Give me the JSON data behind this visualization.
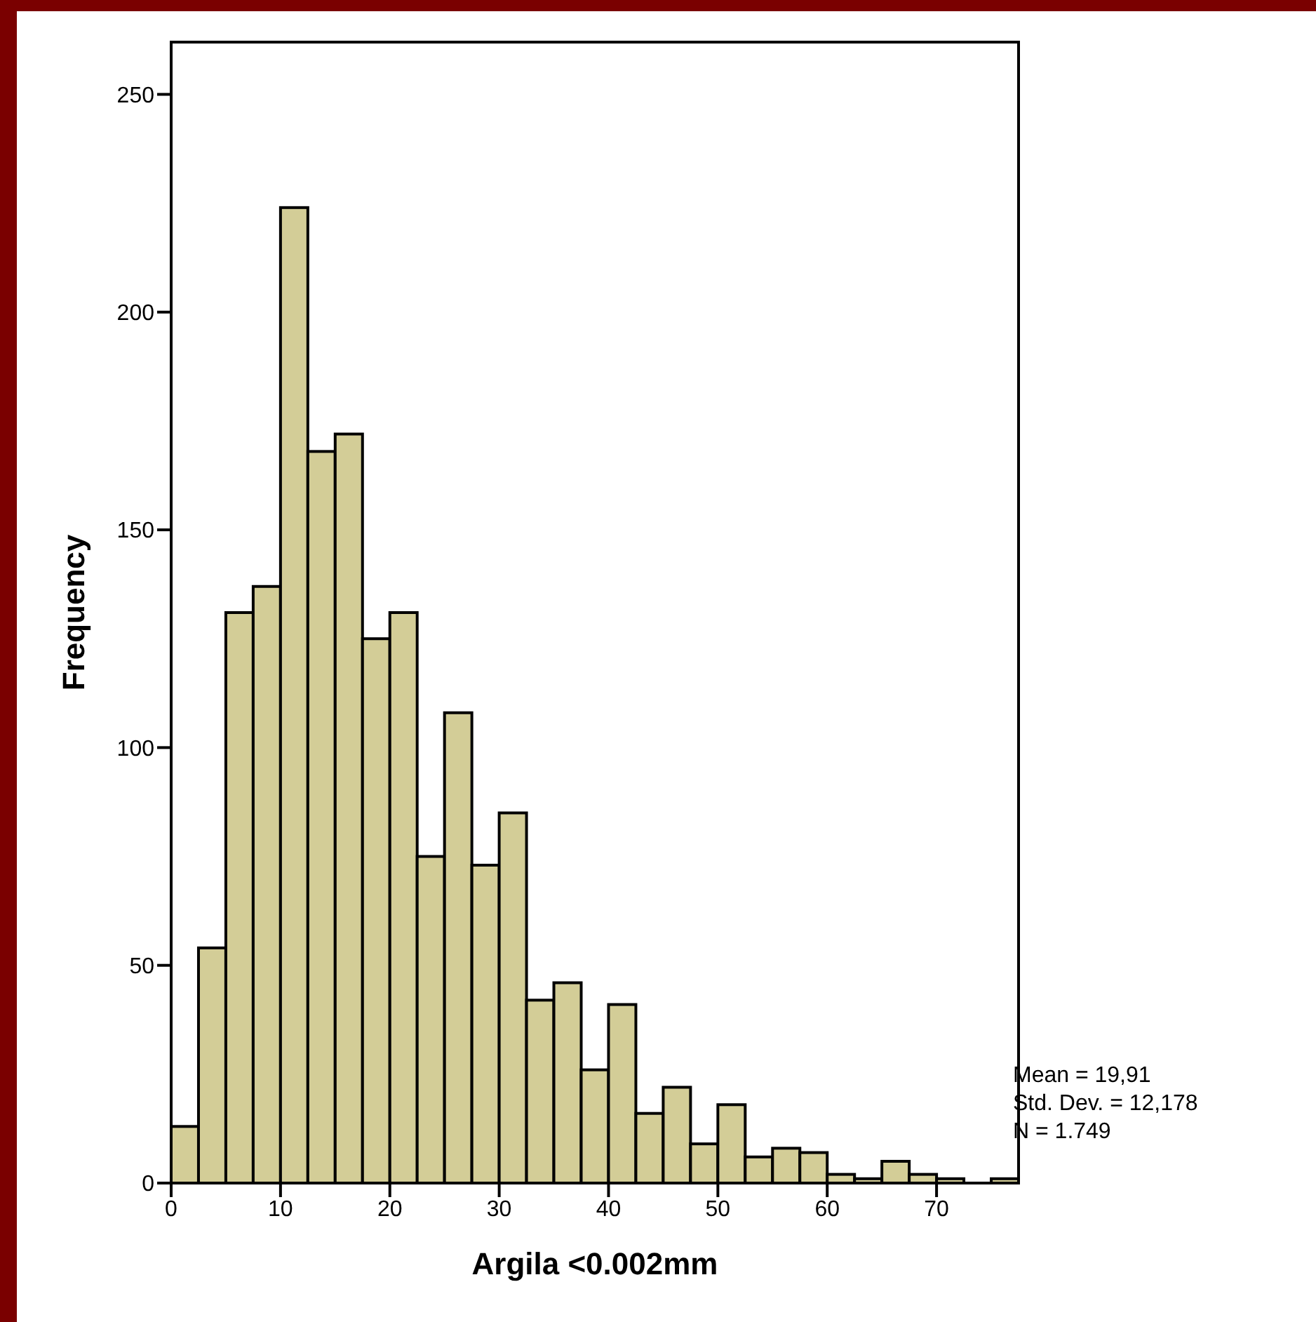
{
  "chart_data": {
    "type": "histogram",
    "xlabel": "Argila <0.002mm",
    "ylabel": "Frequency",
    "bins": [
      0,
      2.5,
      5,
      7.5,
      10,
      12.5,
      15,
      17.5,
      20,
      22.5,
      25,
      27.5,
      30,
      32.5,
      35,
      37.5,
      40,
      42.5,
      45,
      47.5,
      50,
      52.5,
      55,
      57.5,
      60,
      62.5,
      65,
      67.5,
      70,
      72.5,
      75,
      77.5
    ],
    "values": [
      13,
      54,
      131,
      137,
      224,
      168,
      172,
      125,
      131,
      75,
      108,
      73,
      85,
      42,
      46,
      26,
      41,
      16,
      22,
      9,
      18,
      6,
      8,
      7,
      2,
      1,
      5,
      2,
      1,
      0,
      1
    ],
    "color": "#d3cd97",
    "xlim": [
      0,
      77.5
    ],
    "xticks": [
      0,
      10,
      20,
      30,
      40,
      50,
      60,
      70
    ],
    "ylim": [
      0,
      262
    ],
    "yticks": [
      0,
      50,
      100,
      150,
      200,
      250
    ],
    "grid": false,
    "legend": false,
    "annotations": [
      "Mean = 19,91",
      "Std. Dev. = 12,178",
      "N = 1.749"
    ]
  }
}
